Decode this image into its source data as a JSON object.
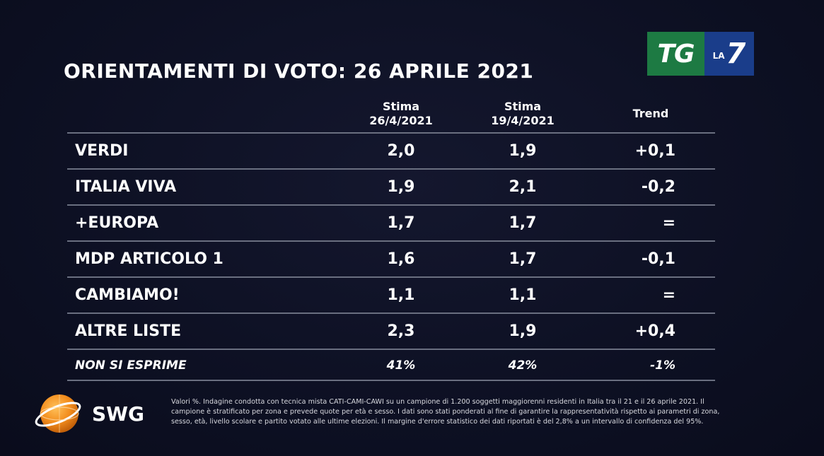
{
  "title": "ORIENTAMENTI DI VOTO: 26 APRILE 2021",
  "brand": {
    "tg": "TG",
    "la": "LA",
    "seven": "7",
    "swg": "SWG",
    "colors": {
      "tg_green": "#1d7a43",
      "la7_blue": "#1a3d8a",
      "swg_orange": "#f28c1c"
    }
  },
  "columns": {
    "c1_line1": "Stima",
    "c1_line2": "26/4/2021",
    "c2_line1": "Stima",
    "c2_line2": "19/4/2021",
    "c3": "Trend"
  },
  "rows": [
    {
      "name": "VERDI",
      "v1": "2,0",
      "v2": "1,9",
      "trend": "+0,1"
    },
    {
      "name": "ITALIA VIVA",
      "v1": "1,9",
      "v2": "2,1",
      "trend": "-0,2"
    },
    {
      "name": "+EUROPA",
      "v1": "1,7",
      "v2": "1,7",
      "trend": "="
    },
    {
      "name": "MDP ARTICOLO 1",
      "v1": "1,6",
      "v2": "1,7",
      "trend": "-0,1"
    },
    {
      "name": "CAMBIAMO!",
      "v1": "1,1",
      "v2": "1,1",
      "trend": "="
    },
    {
      "name": "ALTRE LISTE",
      "v1": "2,3",
      "v2": "1,9",
      "trend": "+0,4"
    },
    {
      "name": "NON SI ESPRIME",
      "v1": "41%",
      "v2": "42%",
      "trend": "-1%"
    }
  ],
  "footnote": "Valori %. Indagine condotta con tecnica mista CATI-CAMI-CAWI su un campione di 1.200 soggetti maggiorenni residenti in Italia tra il 21 e il 26 aprile 2021. Il campione è stratificato per zona e prevede quote per età e sesso. I dati sono stati ponderati al fine di garantire la rappresentatività rispetto ai parametri di zona, sesso, età, livello scolare e partito votato alle ultime elezioni. Il margine d'errore statistico dei dati riportati è del 2,8% a un intervallo di confidenza del 95%."
}
